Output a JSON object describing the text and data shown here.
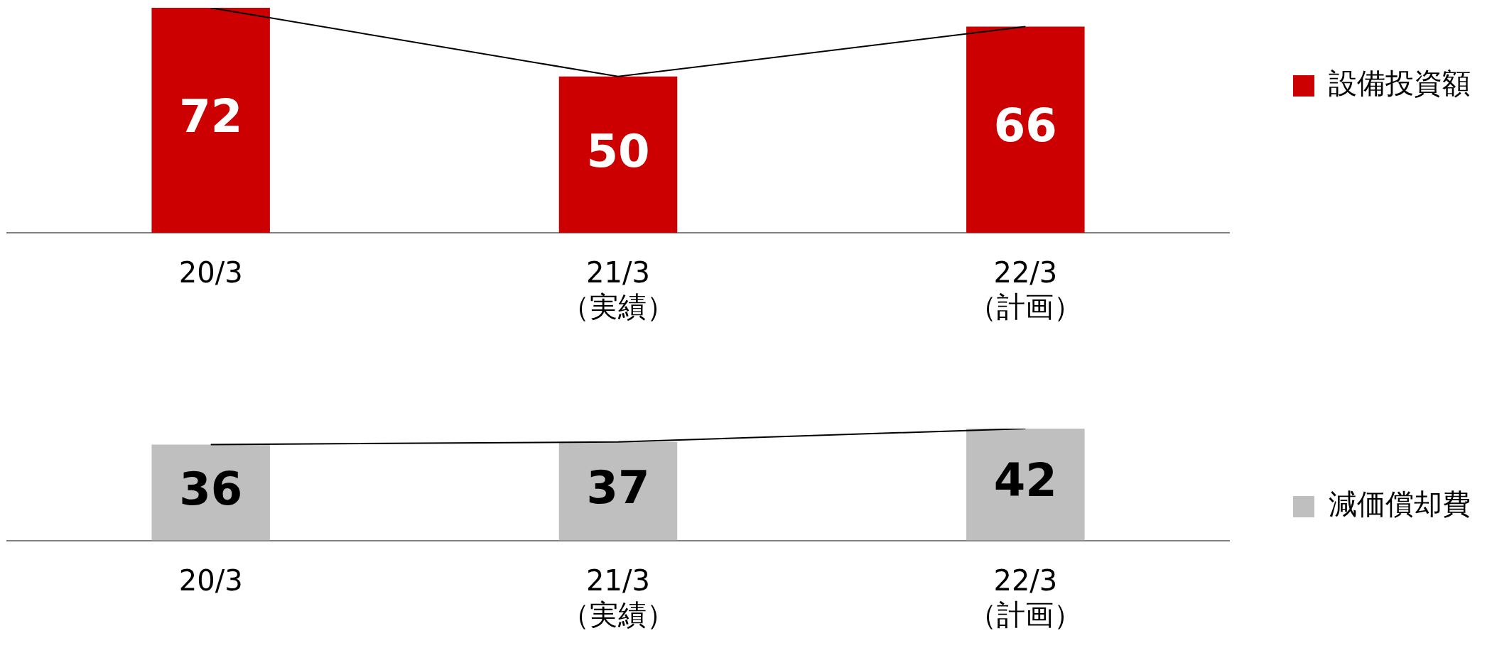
{
  "chart_data": [
    {
      "type": "bar",
      "categories": [
        "20/3",
        "21/3\n（実績）",
        "22/3\n（計画）"
      ],
      "series": [
        {
          "name": "設備投資額",
          "color": "#cc0000",
          "values": [
            72,
            50,
            66
          ],
          "value_labels": [
            "72",
            "50",
            "66"
          ]
        },
        {
          "type": "line",
          "color": "#000000",
          "values": [
            72,
            50,
            66
          ]
        }
      ],
      "marker": "none",
      "legend": "right",
      "grid": false
    },
    {
      "type": "bar",
      "categories": [
        "20/3",
        "21/3\n（実績）",
        "22/3\n（計画）"
      ],
      "series": [
        {
          "name": "減価償却費",
          "color": "#bfbfbf",
          "values": [
            36,
            37,
            42
          ],
          "value_labels": [
            "36",
            "37",
            "42"
          ]
        },
        {
          "type": "line",
          "color": "#000000",
          "values": [
            36,
            37,
            42
          ]
        }
      ],
      "marker": "none",
      "legend": "right",
      "grid": false
    }
  ]
}
